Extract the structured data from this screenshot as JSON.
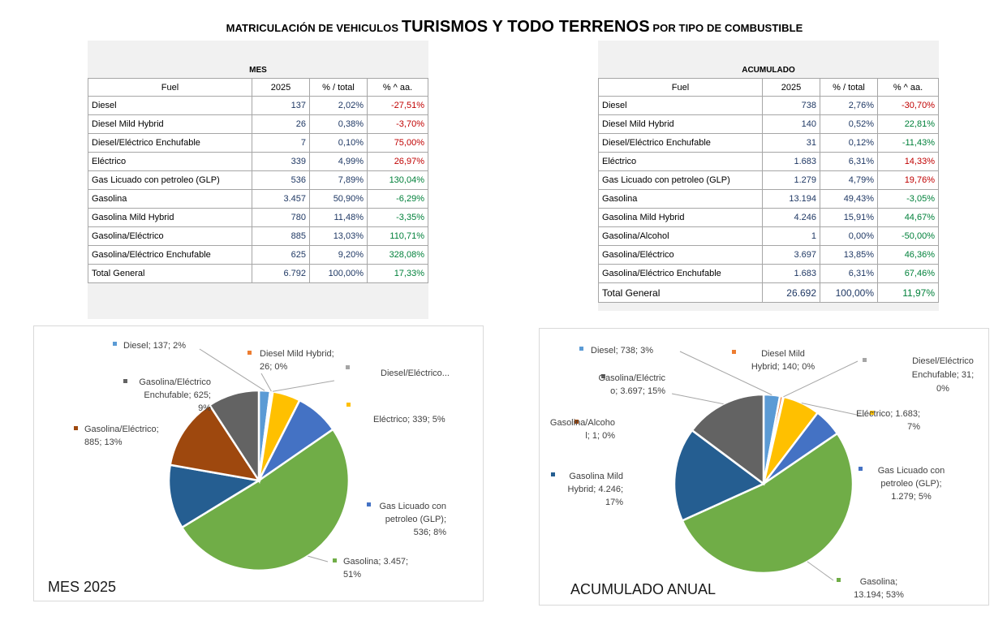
{
  "title": {
    "part1": "MATRICULACIÓN DE VEHICULOS ",
    "part2": "TURISMOS Y TODO TERRENOS",
    "part3": " POR TIPO DE COMBUSTIBLE"
  },
  "mes_table": {
    "caption": "MES",
    "headers": [
      "Fuel",
      "2025",
      "% / total",
      "% ^ aa."
    ],
    "rows": [
      {
        "fuel": "Diesel",
        "v": "137",
        "pct": "2,02%",
        "yoy": "-27,51%",
        "sign": "neg"
      },
      {
        "fuel": "Diesel Mild Hybrid",
        "v": "26",
        "pct": "0,38%",
        "yoy": "-3,70%",
        "sign": "neg"
      },
      {
        "fuel": "Diesel/Eléctrico Enchufable",
        "v": "7",
        "pct": "0,10%",
        "yoy": "75,00%",
        "sign": "neg"
      },
      {
        "fuel": "Eléctrico",
        "v": "339",
        "pct": "4,99%",
        "yoy": "26,97%",
        "sign": "neg"
      },
      {
        "fuel": "Gas Licuado con petroleo (GLP)",
        "v": "536",
        "pct": "7,89%",
        "yoy": "130,04%",
        "sign": "pos"
      },
      {
        "fuel": "Gasolina",
        "v": "3.457",
        "pct": "50,90%",
        "yoy": "-6,29%",
        "sign": "pos"
      },
      {
        "fuel": "Gasolina Mild Hybrid",
        "v": "780",
        "pct": "11,48%",
        "yoy": "-3,35%",
        "sign": "pos"
      },
      {
        "fuel": "Gasolina/Eléctrico",
        "v": "885",
        "pct": "13,03%",
        "yoy": "110,71%",
        "sign": "pos"
      },
      {
        "fuel": "Gasolina/Eléctrico Enchufable",
        "v": "625",
        "pct": "9,20%",
        "yoy": "328,08%",
        "sign": "pos"
      }
    ],
    "total": {
      "fuel": "Total General",
      "v": "6.792",
      "pct": "100,00%",
      "yoy": "17,33%"
    }
  },
  "acum_table": {
    "caption": "ACUMULADO",
    "headers": [
      "Fuel",
      "2025",
      "% / total",
      "% ^ aa."
    ],
    "rows": [
      {
        "fuel": "Diesel",
        "v": "738",
        "pct": "2,76%",
        "yoy": "-30,70%",
        "sign": "neg"
      },
      {
        "fuel": "Diesel Mild Hybrid",
        "v": "140",
        "pct": "0,52%",
        "yoy": "22,81%",
        "sign": "pos"
      },
      {
        "fuel": "Diesel/Eléctrico Enchufable",
        "v": "31",
        "pct": "0,12%",
        "yoy": "-11,43%",
        "sign": "pos"
      },
      {
        "fuel": "Eléctrico",
        "v": "1.683",
        "pct": "6,31%",
        "yoy": "14,33%",
        "sign": "neg"
      },
      {
        "fuel": "Gas Licuado con petroleo (GLP)",
        "v": "1.279",
        "pct": "4,79%",
        "yoy": "19,76%",
        "sign": "neg"
      },
      {
        "fuel": "Gasolina",
        "v": "13.194",
        "pct": "49,43%",
        "yoy": "-3,05%",
        "sign": "pos"
      },
      {
        "fuel": "Gasolina Mild Hybrid",
        "v": "4.246",
        "pct": "15,91%",
        "yoy": "44,67%",
        "sign": "pos"
      },
      {
        "fuel": "Gasolina/Alcohol",
        "v": "1",
        "pct": "0,00%",
        "yoy": "-50,00%",
        "sign": "pos"
      },
      {
        "fuel": "Gasolina/Eléctrico",
        "v": "3.697",
        "pct": "13,85%",
        "yoy": "46,36%",
        "sign": "pos"
      },
      {
        "fuel": "Gasolina/Eléctrico Enchufable",
        "v": "1.683",
        "pct": "6,31%",
        "yoy": "67,46%",
        "sign": "pos"
      }
    ],
    "total": {
      "fuel": "Total General",
      "v": "26.692",
      "pct": "100,00%",
      "yoy": "11,97%"
    }
  },
  "chart_data": [
    {
      "type": "pie",
      "title": "MES 2025",
      "slices": [
        {
          "name": "Diesel",
          "value": 137,
          "color": "#5b9bd5",
          "label": [
            "Diesel; 137; 2%"
          ]
        },
        {
          "name": "Diesel Mild Hybrid",
          "value": 26,
          "color": "#ed7d31",
          "label": [
            "Diesel Mild Hybrid;",
            "26; 0%"
          ]
        },
        {
          "name": "Diesel/Eléctrico Enchufable",
          "value": 7,
          "color": "#a5a5a5",
          "label": [
            "Diesel/Eléctrico..."
          ]
        },
        {
          "name": "Eléctrico",
          "value": 339,
          "color": "#ffc000",
          "label": [
            "Eléctrico; 339; 5%"
          ]
        },
        {
          "name": "Gas Licuado con petroleo (GLP)",
          "value": 536,
          "color": "#4472c4",
          "label": [
            "Gas Licuado con",
            "petroleo (GLP);",
            "536; 8%"
          ]
        },
        {
          "name": "Gasolina",
          "value": 3457,
          "color": "#70ad47",
          "label": [
            "Gasolina; 3.457;",
            "51%"
          ]
        },
        {
          "name": "Gasolina Mild Hybrid",
          "value": 780,
          "color": "#255e91",
          "label": []
        },
        {
          "name": "Gasolina/Eléctrico",
          "value": 885,
          "color": "#9e480e",
          "label": [
            "Gasolina/Eléctrico;",
            "885; 13%"
          ]
        },
        {
          "name": "Gasolina/Eléctrico Enchufable",
          "value": 625,
          "color": "#636363",
          "label": [
            "Gasolina/Eléctrico",
            "Enchufable; 625;",
            "9%"
          ]
        }
      ]
    },
    {
      "type": "pie",
      "title": "ACUMULADO ANUAL",
      "slices": [
        {
          "name": "Diesel",
          "value": 738,
          "color": "#5b9bd5",
          "label": [
            "Diesel; 738; 3%"
          ]
        },
        {
          "name": "Diesel Mild Hybrid",
          "value": 140,
          "color": "#ed7d31",
          "label": [
            "Diesel Mild",
            "Hybrid; 140; 0%"
          ]
        },
        {
          "name": "Diesel/Eléctrico Enchufable",
          "value": 31,
          "color": "#a5a5a5",
          "label": [
            "Diesel/Eléctrico",
            "Enchufable; 31;",
            "0%"
          ]
        },
        {
          "name": "Eléctrico",
          "value": 1683,
          "color": "#ffc000",
          "label": [
            "Eléctrico; 1.683;",
            "7%"
          ]
        },
        {
          "name": "Gas Licuado con petroleo (GLP)",
          "value": 1279,
          "color": "#4472c4",
          "label": [
            "Gas Licuado con",
            "petroleo (GLP);",
            "1.279; 5%"
          ]
        },
        {
          "name": "Gasolina",
          "value": 13194,
          "color": "#70ad47",
          "label": [
            "Gasolina;",
            "13.194; 53%"
          ]
        },
        {
          "name": "Gasolina Mild Hybrid",
          "value": 4246,
          "color": "#255e91",
          "label": [
            "Gasolina Mild",
            "Hybrid; 4.246;",
            "17%"
          ]
        },
        {
          "name": "Gasolina/Alcohol",
          "value": 1,
          "color": "#9e480e",
          "label": [
            "Gasolina/Alcoho",
            "l; 1; 0%"
          ]
        },
        {
          "name": "Gasolina/Eléctrico",
          "value": 3697,
          "color": "#636363",
          "label": [
            "Gasolina/Eléctric",
            "o; 3.697; 15%"
          ]
        }
      ]
    }
  ]
}
